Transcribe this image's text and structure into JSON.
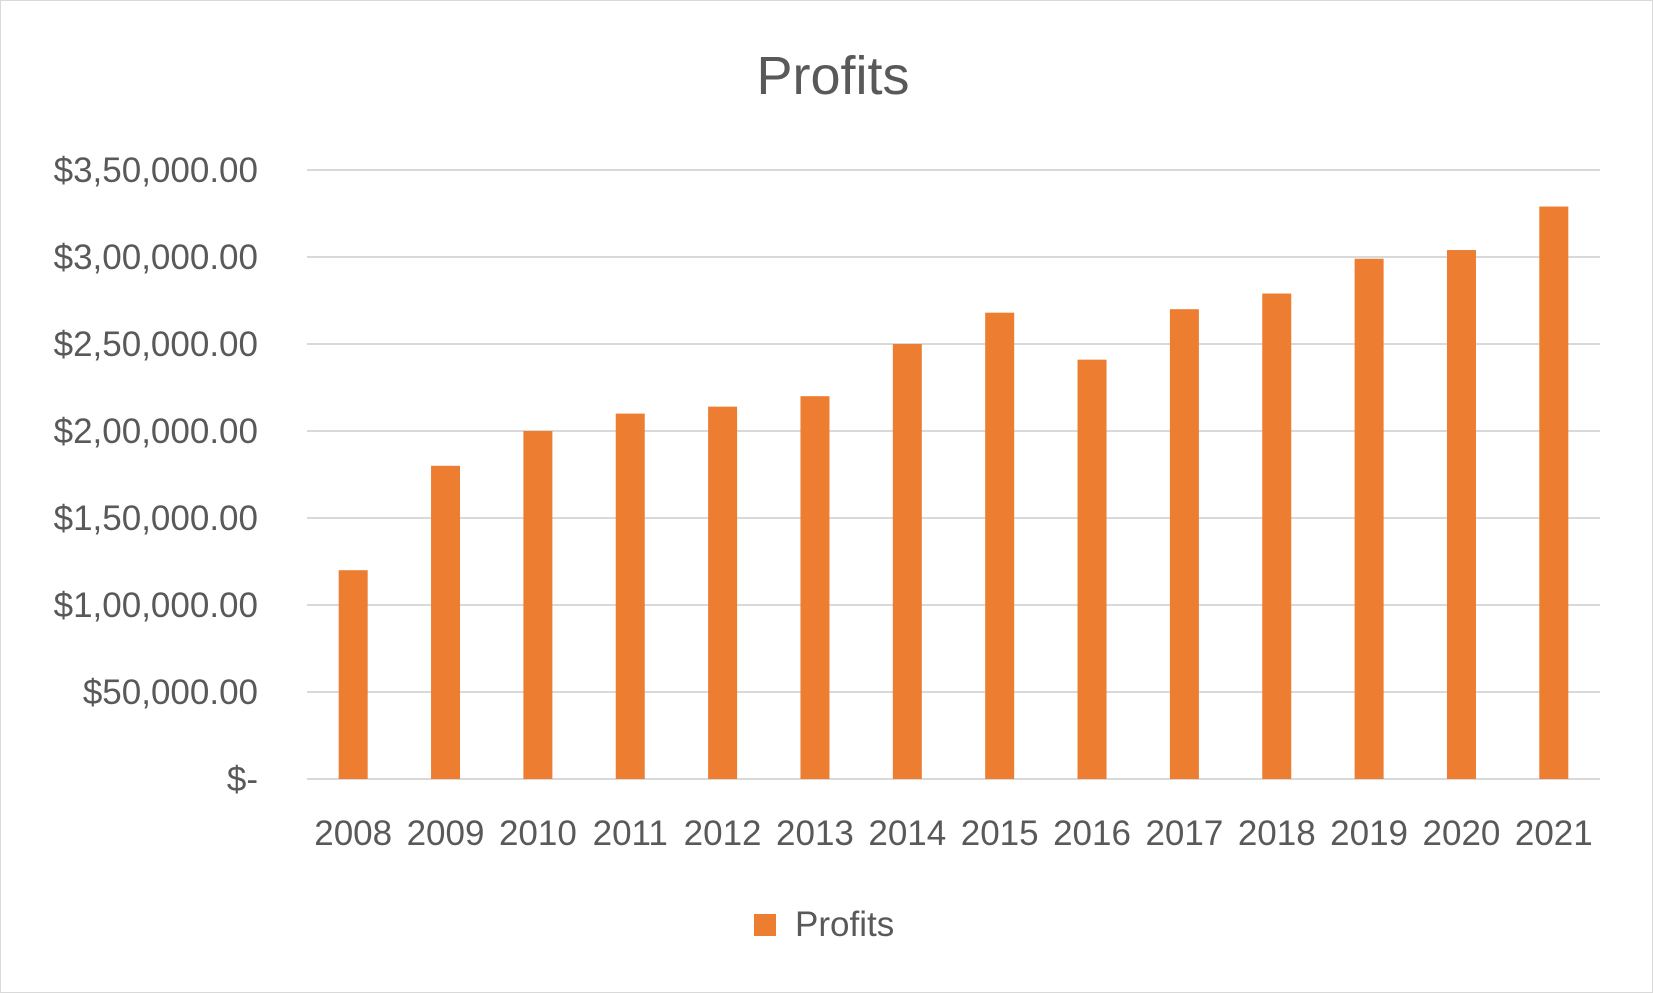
{
  "chart_data": {
    "type": "bar",
    "title": "Profits",
    "xlabel": "",
    "ylabel": "",
    "categories": [
      "2008",
      "2009",
      "2010",
      "2011",
      "2012",
      "2013",
      "2014",
      "2015",
      "2016",
      "2017",
      "2018",
      "2019",
      "2020",
      "2021"
    ],
    "series": [
      {
        "name": "Profits",
        "color": "#ED7D31",
        "values": [
          120000,
          180000,
          200000,
          210000,
          214000,
          220000,
          250000,
          268000,
          241000,
          270000,
          279000,
          299000,
          304000,
          329000
        ]
      }
    ],
    "ylim": [
      0,
      350000
    ],
    "yticks": [
      0,
      50000,
      100000,
      150000,
      200000,
      250000,
      300000,
      350000
    ],
    "ytick_labels": [
      "$-",
      "$50,000.00",
      "$1,00,000.00",
      "$1,50,000.00",
      "$2,00,000.00",
      "$2,50,000.00",
      "$3,00,000.00",
      "$3,50,000.00"
    ],
    "grid": true,
    "legend": "bottom",
    "gridline_color": "#d9d9d9",
    "text_color": "#595959"
  }
}
